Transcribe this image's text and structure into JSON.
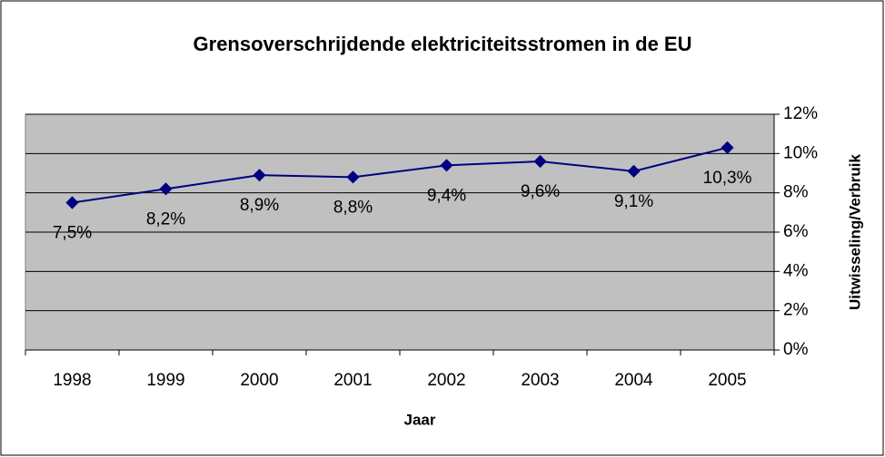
{
  "chart_data": {
    "type": "line",
    "title": "Grensoverschrijdende elektriciteitsstromen in de EU",
    "x_label": "Jaar",
    "y_label": "Uitwisseling/Verbruik",
    "categories": [
      "1998",
      "1999",
      "2000",
      "2001",
      "2002",
      "2003",
      "2004",
      "2005"
    ],
    "values": [
      7.5,
      8.2,
      8.9,
      8.8,
      9.4,
      9.6,
      9.1,
      10.3
    ],
    "value_labels": [
      "7,5%",
      "8,2%",
      "8,9%",
      "8,8%",
      "9,4%",
      "9,6%",
      "9,1%",
      "10,3%"
    ],
    "color": "#000080",
    "ylim": [
      0,
      12
    ],
    "yticks": [
      {
        "value": 0,
        "label": "0%"
      },
      {
        "value": 2,
        "label": "2%"
      },
      {
        "value": 4,
        "label": "4%"
      },
      {
        "value": 6,
        "label": "6%"
      },
      {
        "value": 8,
        "label": "8%"
      },
      {
        "value": 10,
        "label": "10%"
      },
      {
        "value": 12,
        "label": "12%"
      }
    ],
    "y_axis_side": "right",
    "grid": true
  }
}
